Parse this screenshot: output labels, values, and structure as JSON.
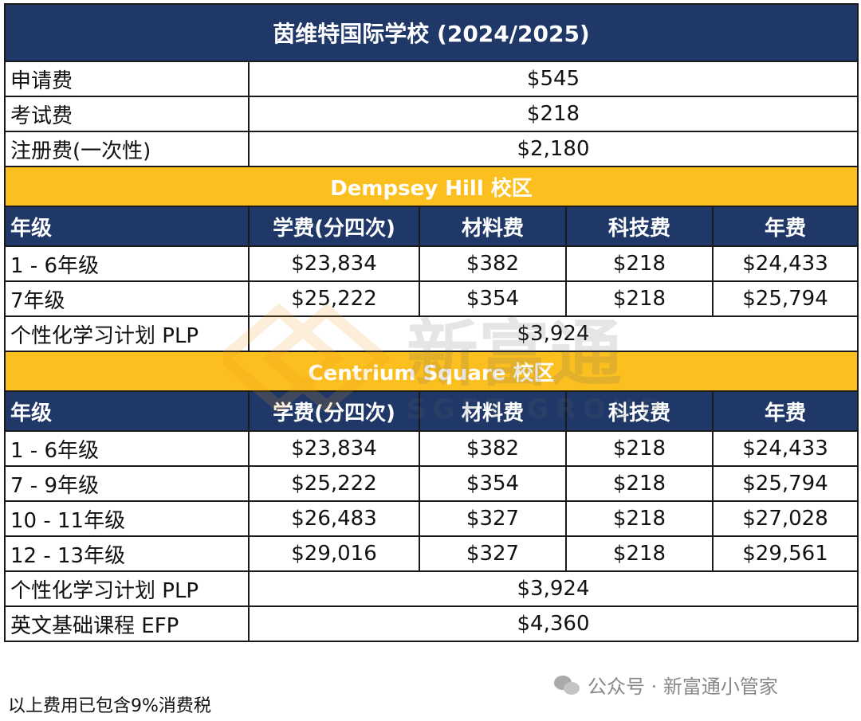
{
  "title": "茵维特国际学校 (2024/2025)",
  "fees": [
    {
      "label": "申请费",
      "value": "$545"
    },
    {
      "label": "考试费",
      "value": "$218"
    },
    {
      "label": "注册费(一次性)",
      "value": "$2,180"
    }
  ],
  "headers": [
    "年级",
    "学费(分四次)",
    "材料费",
    "科技费",
    "年费"
  ],
  "campus1": {
    "name": "Dempsey Hill 校区",
    "rows": [
      [
        "1 - 6年级",
        "$23,834",
        "$382",
        "$218",
        "$24,433"
      ],
      [
        "7年级",
        "$25,222",
        "$354",
        "$218",
        "$25,794"
      ]
    ],
    "plp": {
      "label": "个性化学习计划 PLP",
      "value": "$3,924"
    }
  },
  "campus2": {
    "name": "Centrium Square 校区",
    "rows": [
      [
        "1 - 6年级",
        "$23,834",
        "$382",
        "$218",
        "$24,433"
      ],
      [
        "7 - 9年级",
        "$25,222",
        "$354",
        "$218",
        "$25,794"
      ],
      [
        "10 - 11年级",
        "$26,483",
        "$327",
        "$218",
        "$27,028"
      ],
      [
        "12 - 13年级",
        "$29,016",
        "$327",
        "$218",
        "$29,561"
      ]
    ],
    "plp": {
      "label": "个性化学习计划 PLP",
      "value": "$3,924"
    },
    "efp": {
      "label": "英文基础课程 EFP",
      "value": "$4,360"
    }
  },
  "footnote": "以上费用已包含9%消费税",
  "wechat": "公众号 · 新富通小管家",
  "watermark": {
    "text": "新富通",
    "sub": "SGFT GROUP"
  },
  "colors": {
    "navy": "#1f3868",
    "gold": "#fbbf1f"
  }
}
